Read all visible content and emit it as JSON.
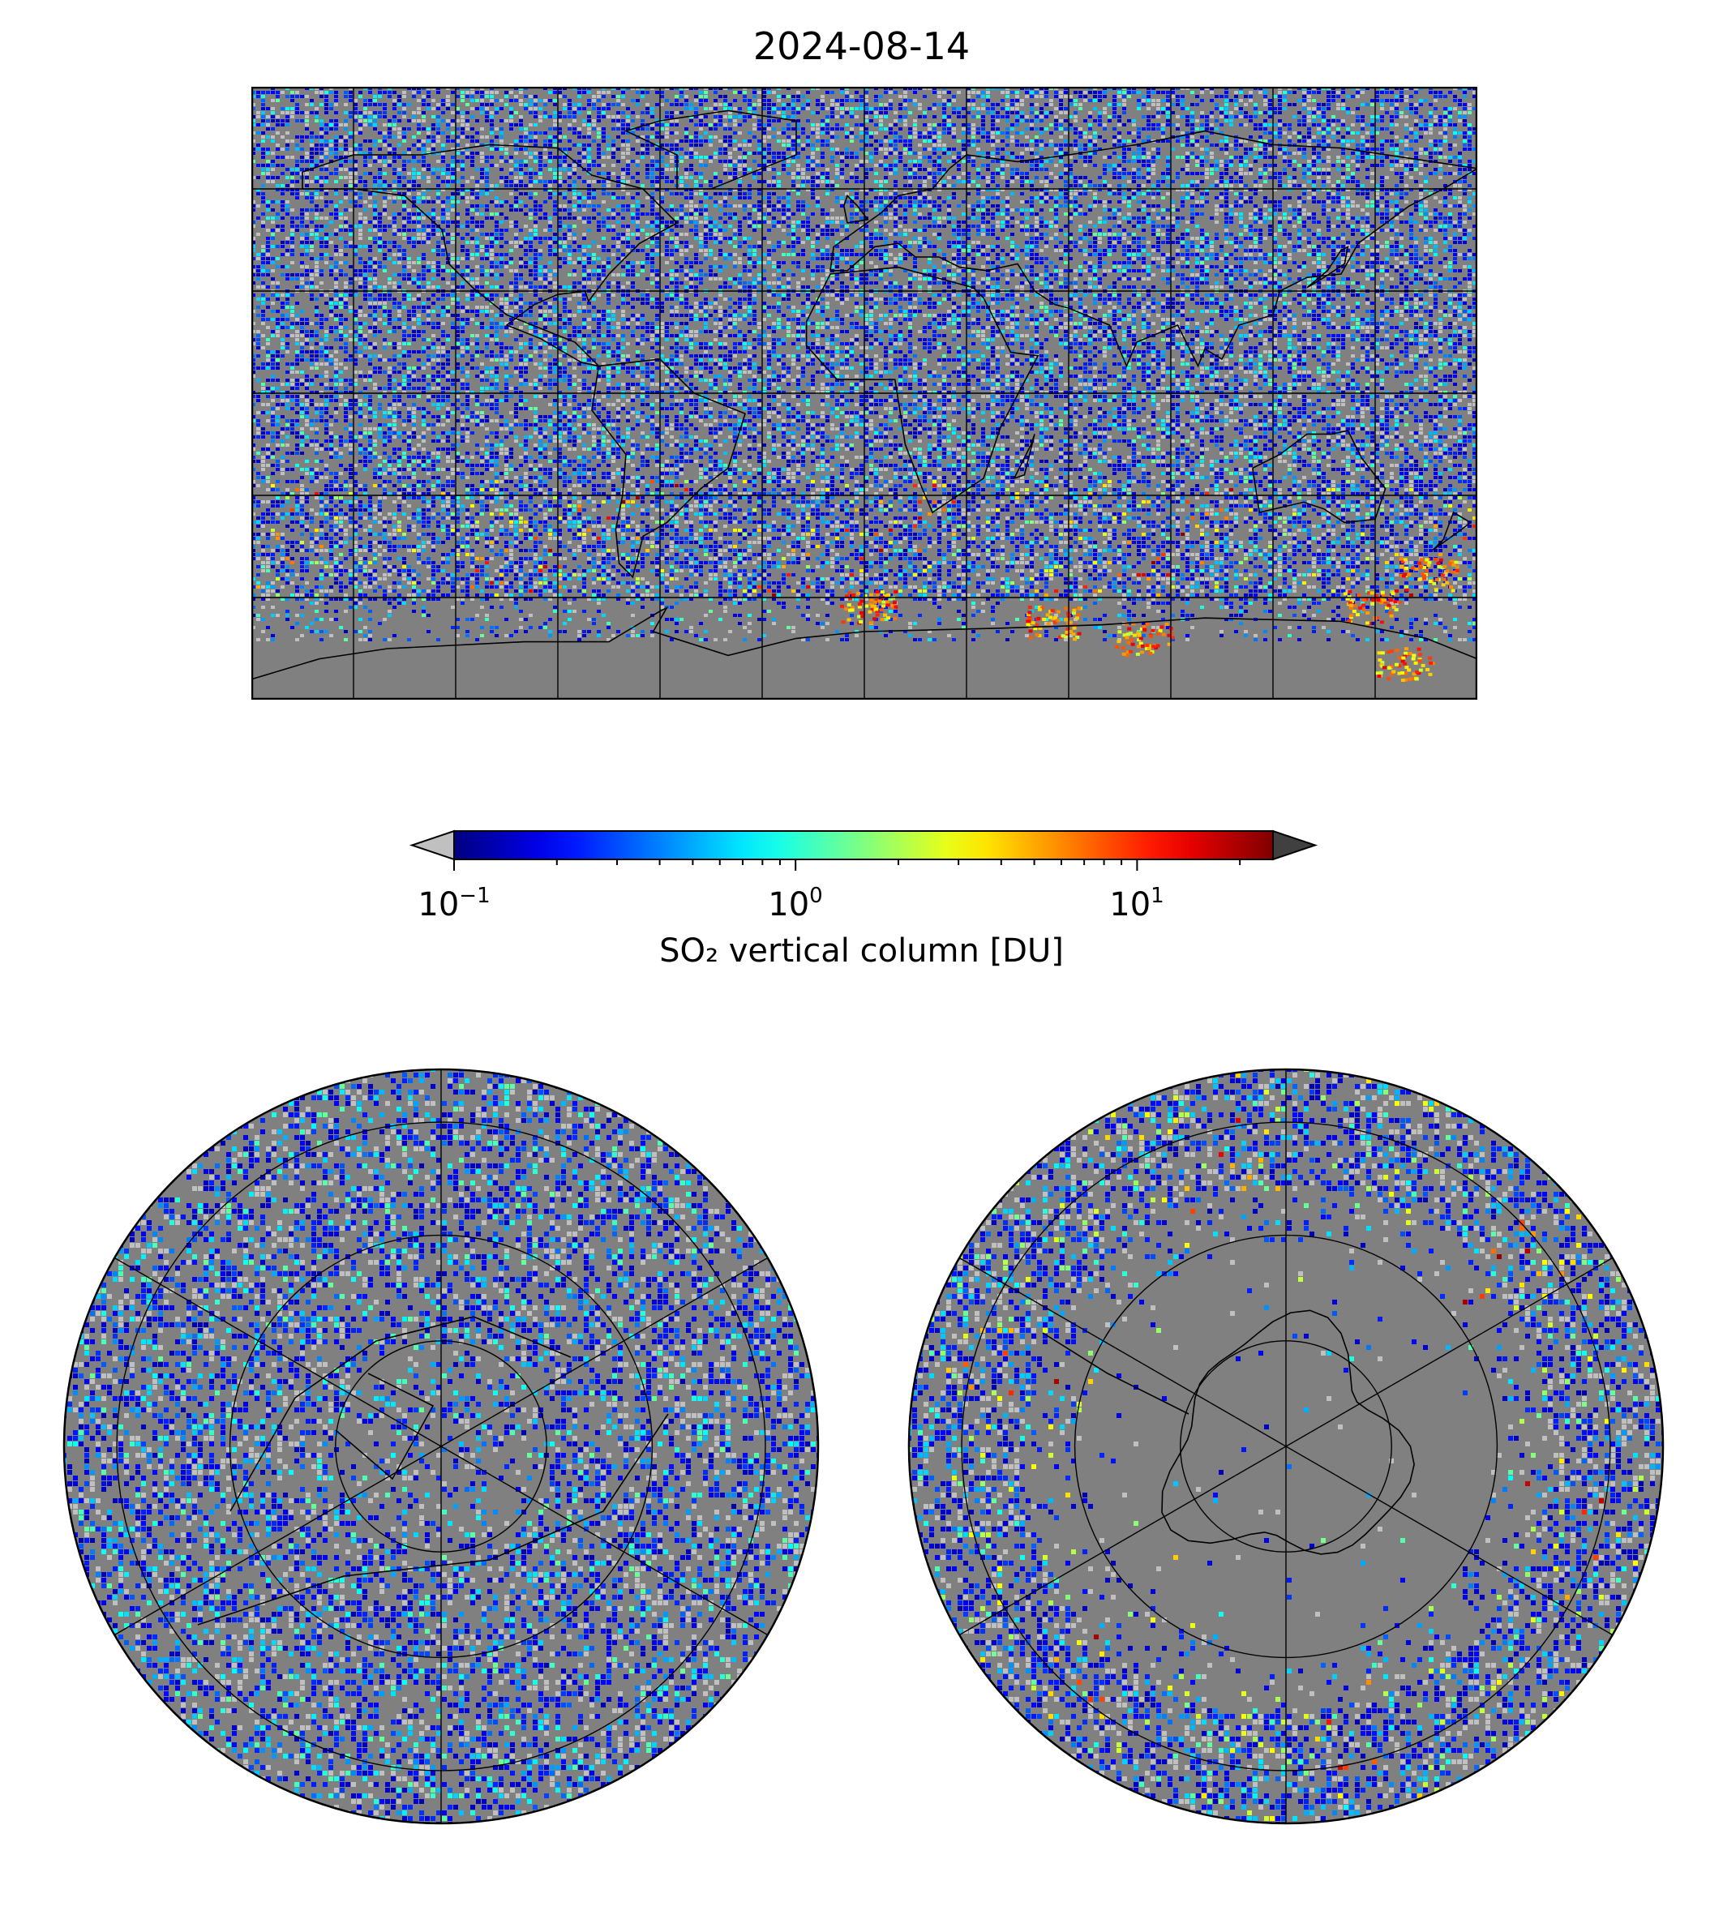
{
  "figure": {
    "title": "2024-08-14"
  },
  "colorbar": {
    "label": "SO₂ vertical column [DU]",
    "scale": "log",
    "colormap": "jet",
    "range": [
      0.1,
      25
    ],
    "extend": "both",
    "under_color": "#c0c0c0",
    "over_color": "#404040",
    "ticks": [
      {
        "base": "10",
        "exp": "−1",
        "value": 0.1
      },
      {
        "base": "10",
        "exp": "0",
        "value": 1
      },
      {
        "base": "10",
        "exp": "1",
        "value": 10
      }
    ]
  },
  "maps": {
    "background_color": "#808080",
    "fill_value_color": "#c0c0c0",
    "coastline_color": "#000000",
    "panels": [
      "world",
      "north-polar",
      "south-polar"
    ],
    "world_projection": "plate-carree",
    "grid_lon_step_deg": 30,
    "grid_lat_step_deg": 30
  }
}
